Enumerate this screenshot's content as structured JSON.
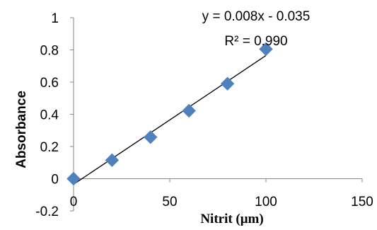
{
  "chart_data": {
    "type": "scatter",
    "title": "",
    "xlabel": "Nitrit (μm)",
    "ylabel": "Absorbance",
    "xlim": [
      0,
      150
    ],
    "ylim": [
      -0.2,
      1
    ],
    "x_ticks": [
      "0",
      "50",
      "100",
      "150"
    ],
    "y_ticks": [
      "-0.2",
      "0",
      "0.2",
      "0.4",
      "0.6",
      "0.8",
      "1"
    ],
    "grid": false,
    "legend": "none",
    "series": [
      {
        "x": [
          0,
          20,
          40,
          60,
          80,
          100
        ],
        "y": [
          0.0,
          0.115,
          0.258,
          0.422,
          0.59,
          0.805
        ],
        "marker": "diamond",
        "color": "#4F81BD"
      }
    ],
    "trendline": {
      "type": "linear",
      "slope": 0.008,
      "intercept": -0.035,
      "x_range": [
        0,
        100
      ],
      "color": "#000000"
    },
    "annotations": {
      "equation": "y = 0.008x - 0.035",
      "r_squared": "R² = 0.990"
    }
  }
}
